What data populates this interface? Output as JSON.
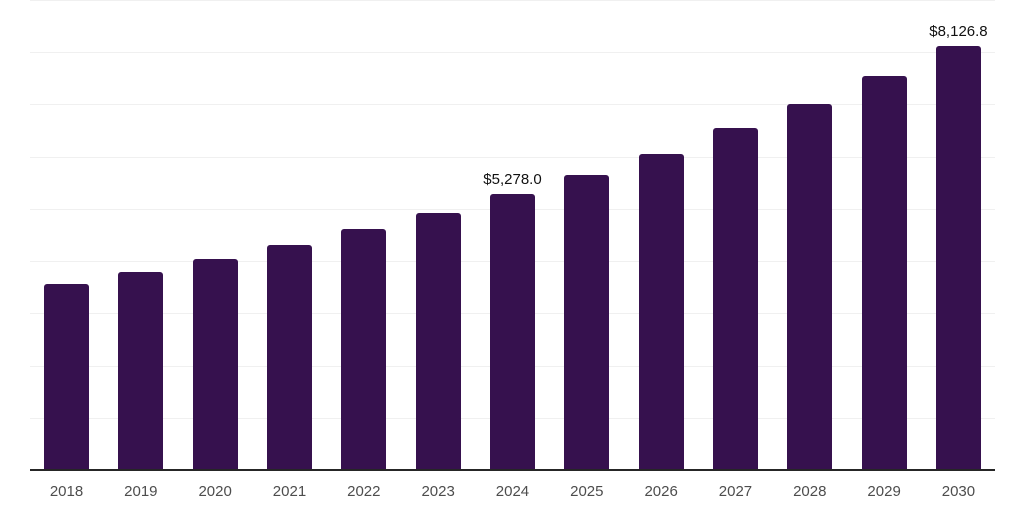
{
  "chart_data": {
    "type": "bar",
    "title": "",
    "xlabel": "",
    "ylabel": "",
    "categories": [
      "2018",
      "2019",
      "2020",
      "2021",
      "2022",
      "2023",
      "2024",
      "2025",
      "2026",
      "2027",
      "2028",
      "2029",
      "2030"
    ],
    "values": [
      3560,
      3790,
      4040,
      4310,
      4610,
      4920,
      5278.0,
      5650,
      6060,
      6550,
      7010,
      7550,
      8126.8
    ],
    "point_labels": {
      "2024": "$5,278.0",
      "2030": "$8,126.8"
    },
    "ylim": [
      0,
      9000
    ],
    "grid_step": 1000,
    "grid": true,
    "legend": false,
    "colors": {
      "bar": "#36114E",
      "axis_line": "#262626",
      "grid_line": "#f0f0f0",
      "tick_label": "#4d4d4d",
      "value_label": "#111111",
      "background": "#ffffff"
    }
  }
}
